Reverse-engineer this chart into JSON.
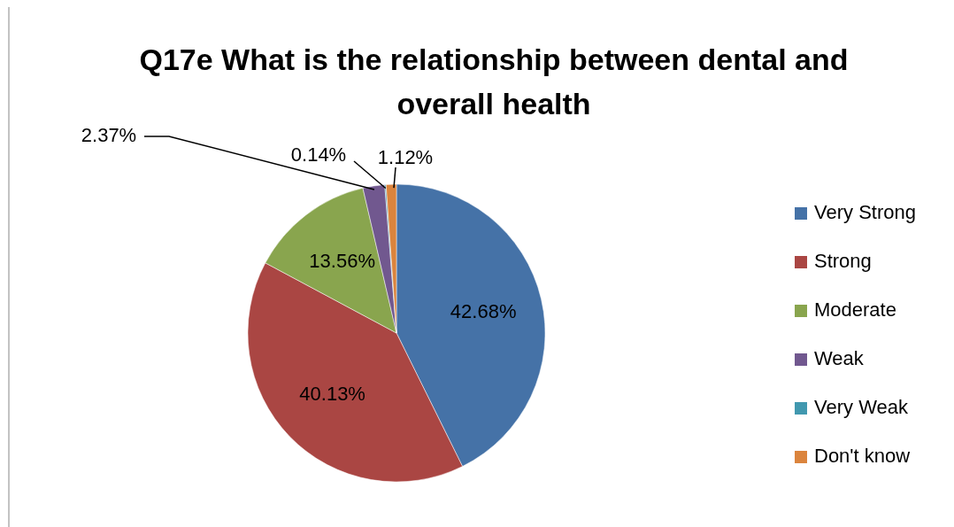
{
  "chart_data": {
    "type": "pie",
    "title": "Q17e What is the relationship between dental and overall health",
    "categories": [
      "Very Strong",
      "Strong",
      "Moderate",
      "Weak",
      "Very Weak",
      "Don't know"
    ],
    "values": [
      42.68,
      40.13,
      13.56,
      2.37,
      0.14,
      1.12
    ],
    "colors": [
      "#4572a7",
      "#aa4643",
      "#89a54e",
      "#71588f",
      "#4198af",
      "#db843d"
    ],
    "value_labels": [
      "42.68%",
      "40.13%",
      "13.56%",
      "2.37%",
      "0.14%",
      "1.12%"
    ],
    "legend": "right"
  }
}
